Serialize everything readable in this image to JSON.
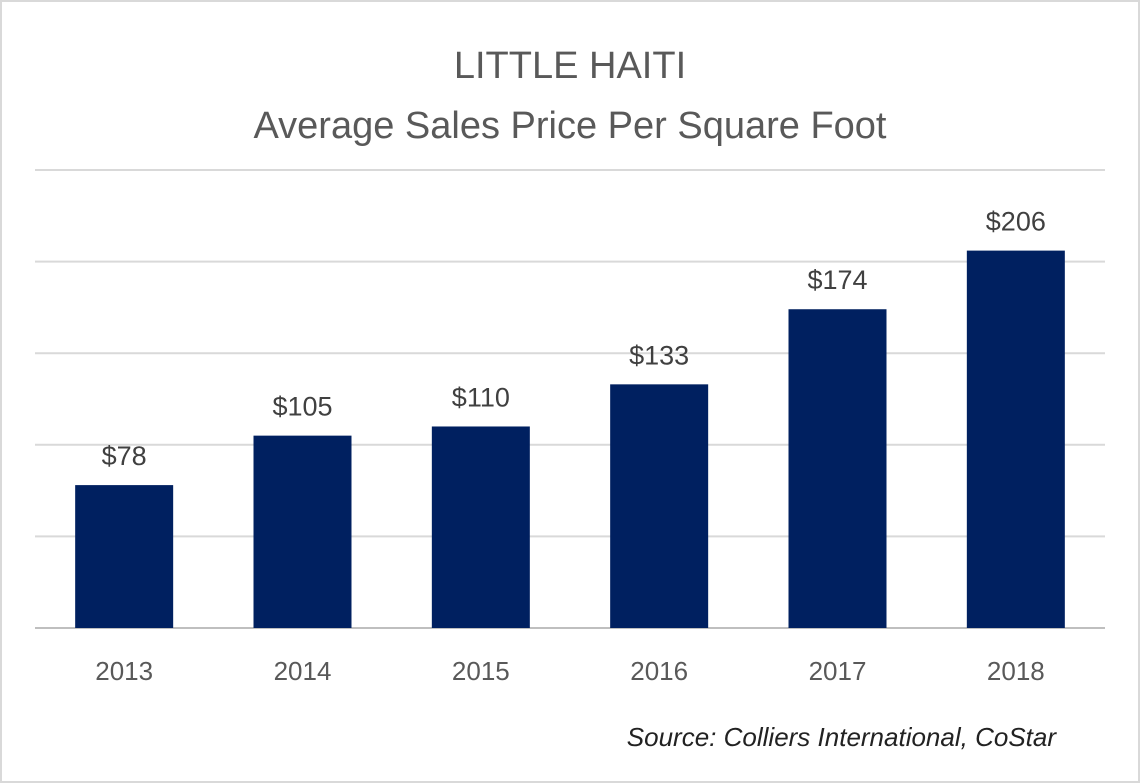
{
  "chart_data": {
    "type": "bar",
    "title": "LITTLE HAITI",
    "subtitle": "Average Sales Price Per Square Foot",
    "categories": [
      "2013",
      "2014",
      "2015",
      "2016",
      "2017",
      "2018"
    ],
    "values": [
      78,
      105,
      110,
      133,
      174,
      206
    ],
    "value_labels": [
      "$78",
      "$105",
      "$110",
      "$133",
      "$174",
      "$206"
    ],
    "ylim": [
      0,
      250
    ],
    "grid": true,
    "y_axis_labels_shown": false,
    "legend": "none",
    "bar_color": "#002060"
  },
  "source": "Source: Colliers International, CoStar"
}
